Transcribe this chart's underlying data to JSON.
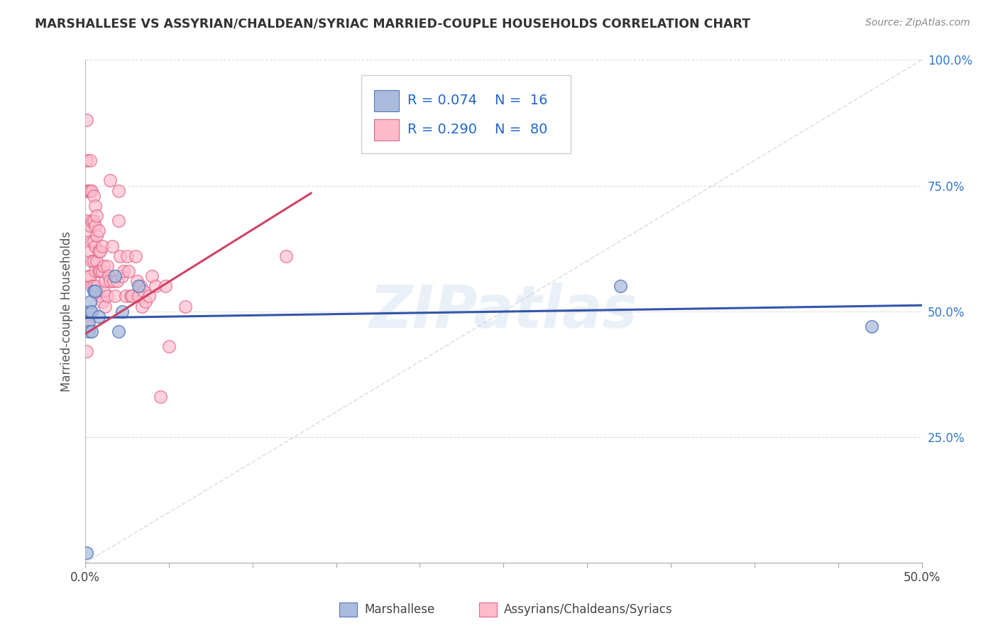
{
  "title": "MARSHALLESE VS ASSYRIAN/CHALDEAN/SYRIAC MARRIED-COUPLE HOUSEHOLDS CORRELATION CHART",
  "source": "Source: ZipAtlas.com",
  "ylabel": "Married-couple Households",
  "xlim": [
    0,
    0.5
  ],
  "ylim": [
    0,
    1.0
  ],
  "xtick_positions": [
    0.0,
    0.05,
    0.1,
    0.15,
    0.2,
    0.25,
    0.3,
    0.35,
    0.4,
    0.45,
    0.5
  ],
  "xtick_labels_shown": {
    "0.0": "0.0%",
    "0.5": "50.0%"
  },
  "ytick_positions": [
    0.0,
    0.25,
    0.5,
    0.75,
    1.0
  ],
  "ytick_labels": [
    "",
    "25.0%",
    "50.0%",
    "75.0%",
    "100.0%"
  ],
  "background_color": "#ffffff",
  "grid_color": "#cccccc",
  "watermark": "ZIPatlas",
  "blue_fill": "#aabbdd",
  "blue_edge": "#5577bb",
  "pink_fill": "#ffbbcc",
  "pink_edge": "#dd6688",
  "blue_line_color": "#3355aa",
  "pink_line_color": "#cc4466",
  "diag_color": "#cccccc",
  "legend_R_blue": "R = 0.074",
  "legend_N_blue": "N =  16",
  "legend_R_pink": "R = 0.290",
  "legend_N_pink": "N =  80",
  "label_blue": "Marshallese",
  "label_pink": "Assyrians/Chaldeans/Syriacs",
  "blue_scatter_x": [
    0.001,
    0.002,
    0.002,
    0.003,
    0.003,
    0.004,
    0.004,
    0.005,
    0.006,
    0.008,
    0.018,
    0.02,
    0.022,
    0.032,
    0.32,
    0.47
  ],
  "blue_scatter_y": [
    0.02,
    0.48,
    0.46,
    0.5,
    0.52,
    0.5,
    0.46,
    0.54,
    0.54,
    0.49,
    0.57,
    0.46,
    0.5,
    0.55,
    0.55,
    0.47
  ],
  "pink_scatter_x": [
    0.001,
    0.001,
    0.001,
    0.001,
    0.001,
    0.002,
    0.002,
    0.002,
    0.002,
    0.003,
    0.003,
    0.003,
    0.003,
    0.003,
    0.004,
    0.004,
    0.004,
    0.004,
    0.004,
    0.005,
    0.005,
    0.005,
    0.005,
    0.005,
    0.006,
    0.006,
    0.006,
    0.006,
    0.007,
    0.007,
    0.007,
    0.007,
    0.008,
    0.008,
    0.008,
    0.008,
    0.009,
    0.009,
    0.009,
    0.01,
    0.01,
    0.01,
    0.011,
    0.011,
    0.012,
    0.012,
    0.013,
    0.013,
    0.014,
    0.015,
    0.015,
    0.016,
    0.017,
    0.018,
    0.019,
    0.02,
    0.02,
    0.021,
    0.022,
    0.023,
    0.024,
    0.025,
    0.026,
    0.027,
    0.028,
    0.03,
    0.031,
    0.032,
    0.033,
    0.034,
    0.035,
    0.036,
    0.038,
    0.04,
    0.042,
    0.045,
    0.048,
    0.05,
    0.06,
    0.12
  ],
  "pink_scatter_y": [
    0.88,
    0.8,
    0.74,
    0.68,
    0.42,
    0.74,
    0.66,
    0.57,
    0.47,
    0.8,
    0.74,
    0.67,
    0.62,
    0.57,
    0.74,
    0.68,
    0.64,
    0.6,
    0.55,
    0.73,
    0.68,
    0.64,
    0.6,
    0.55,
    0.71,
    0.67,
    0.63,
    0.58,
    0.69,
    0.65,
    0.6,
    0.55,
    0.66,
    0.62,
    0.58,
    0.53,
    0.62,
    0.58,
    0.53,
    0.63,
    0.58,
    0.52,
    0.59,
    0.54,
    0.56,
    0.51,
    0.59,
    0.53,
    0.57,
    0.76,
    0.56,
    0.63,
    0.56,
    0.53,
    0.56,
    0.74,
    0.68,
    0.61,
    0.57,
    0.58,
    0.53,
    0.61,
    0.58,
    0.53,
    0.53,
    0.61,
    0.56,
    0.53,
    0.55,
    0.51,
    0.54,
    0.52,
    0.53,
    0.57,
    0.55,
    0.33,
    0.55,
    0.43,
    0.51,
    0.61
  ],
  "blue_line_x": [
    0.0,
    0.5
  ],
  "blue_line_y": [
    0.487,
    0.512
  ],
  "pink_line_x": [
    0.0,
    0.135
  ],
  "pink_line_y": [
    0.455,
    0.735
  ],
  "diag_line_x": [
    0.0,
    0.5
  ],
  "diag_line_y": [
    0.0,
    1.0
  ]
}
